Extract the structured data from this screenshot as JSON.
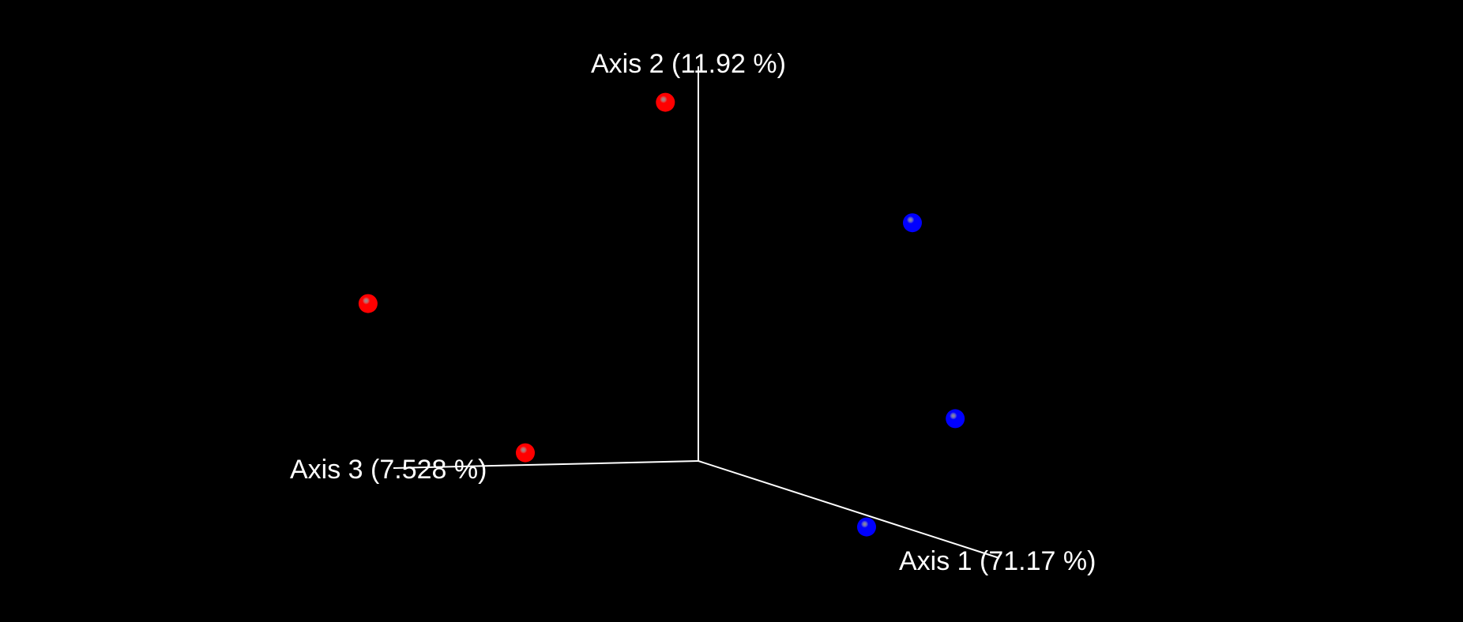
{
  "chart_data": {
    "type": "scatter",
    "projection": "3d",
    "background_color": "#000000",
    "axis_color": "#ffffff",
    "axes": [
      {
        "key": "axis1",
        "label": "Axis 1 (71.17 %)"
      },
      {
        "key": "axis2",
        "label": "Axis 2 (11.92 %)"
      },
      {
        "key": "axis3",
        "label": "Axis 3 (7.528 %)"
      }
    ],
    "series": [
      {
        "color": "#ff0000",
        "points": [
          {
            "x": -0.05,
            "y": 0.59,
            "z": 0.02
          },
          {
            "x": -0.3,
            "y": 0.22,
            "z": 0.35
          },
          {
            "x": 0.0,
            "y": 0.02,
            "z": 0.3
          }
        ]
      },
      {
        "color": "#0000ff",
        "points": [
          {
            "x": 0.5,
            "y": 0.48,
            "z": 0.0
          },
          {
            "x": 0.6,
            "y": 0.17,
            "z": 0.0
          },
          {
            "x": 0.42,
            "y": -0.04,
            "z": 0.02
          }
        ]
      }
    ]
  }
}
